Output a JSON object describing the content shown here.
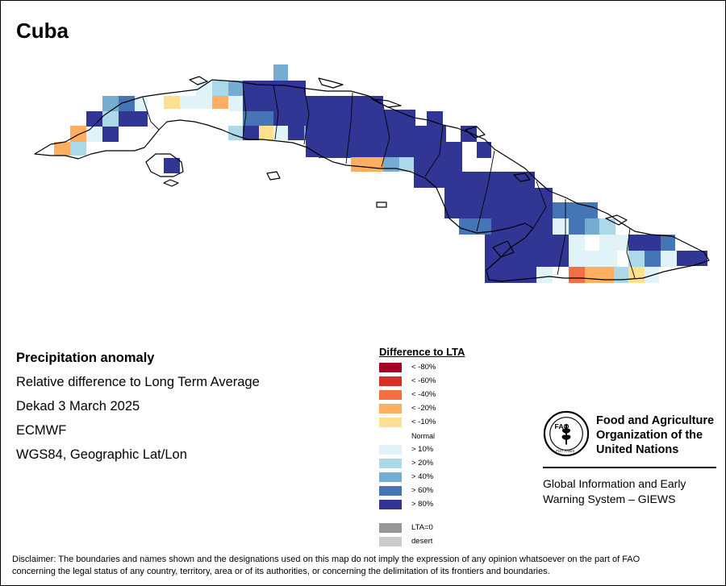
{
  "title": "Cuba",
  "info": {
    "heading": "Precipitation anomaly",
    "line1": "Relative difference to Long Term Average",
    "line2": "Dekad 3 March 2025",
    "line3": "ECMWF",
    "line4": "WGS84, Geographic Lat/Lon"
  },
  "legend": {
    "title": "Difference to LTA",
    "classes": [
      {
        "label": "< -80%",
        "color": "#a50026"
      },
      {
        "label": "< -60%",
        "color": "#d73027"
      },
      {
        "label": "< -40%",
        "color": "#f46d43"
      },
      {
        "label": "< -20%",
        "color": "#fdae61"
      },
      {
        "label": "< -10%",
        "color": "#fee090"
      },
      {
        "label": "Normal",
        "color": "#ffffff"
      },
      {
        "label": "> 10%",
        "color": "#e0f3f8"
      },
      {
        "label": "> 20%",
        "color": "#abd9e9"
      },
      {
        "label": "> 40%",
        "color": "#74add1"
      },
      {
        "label": "> 60%",
        "color": "#4575b4"
      },
      {
        "label": "> 80%",
        "color": "#313695"
      }
    ],
    "extra": [
      {
        "label": "LTA=0",
        "color": "#969696"
      },
      {
        "label": "desert",
        "color": "#cccccc"
      }
    ]
  },
  "fao": {
    "emblem_text": "FAO",
    "emblem_motto": "FIAT PANIS",
    "name_line1": "Food and Agriculture",
    "name_line2": "Organization of the",
    "name_line3": "United Nations",
    "giews_line1": "Global Information and Early",
    "giews_line2": "Warning System – GIEWS"
  },
  "disclaimer_line1": "Disclaimer: The boundaries and names shown and the designations used on this map do not imply the expression of any opinion whatsoever on the part of FAO",
  "disclaimer_line2": "concerning the legal status of any country, territory, area or of its authorities, or concerning the delimitation of its frontiers and boundaries."
}
